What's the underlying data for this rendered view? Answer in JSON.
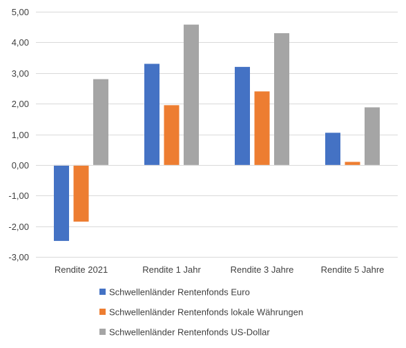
{
  "chart_data": {
    "type": "bar",
    "categories": [
      "Rendite 2021",
      "Rendite 1 Jahr",
      "Rendite 3 Jahre",
      "Rendite 5 Jahre"
    ],
    "series": [
      {
        "name": "Schwellenländer Rentenfonds Euro",
        "values": [
          -2.48,
          3.3,
          3.2,
          1.05
        ],
        "color": "#4472c4"
      },
      {
        "name": "Schwellenländer Rentenfonds lokale Währungen",
        "values": [
          -1.85,
          1.95,
          2.4,
          0.1
        ],
        "color": "#ed7d31"
      },
      {
        "name": "Schwellenländer Rentenfonds US-Dollar",
        "values": [
          2.8,
          4.58,
          4.3,
          1.88
        ],
        "color": "#a5a5a5"
      }
    ],
    "yticks": [
      "-3,00",
      "-2,00",
      "-1,00",
      "0,00",
      "1,00",
      "2,00",
      "3,00",
      "4,00",
      "5,00"
    ],
    "ylim": [
      -3,
      5
    ],
    "grid": true,
    "legend": "bottom",
    "title": "",
    "xlabel": "",
    "ylabel": ""
  }
}
